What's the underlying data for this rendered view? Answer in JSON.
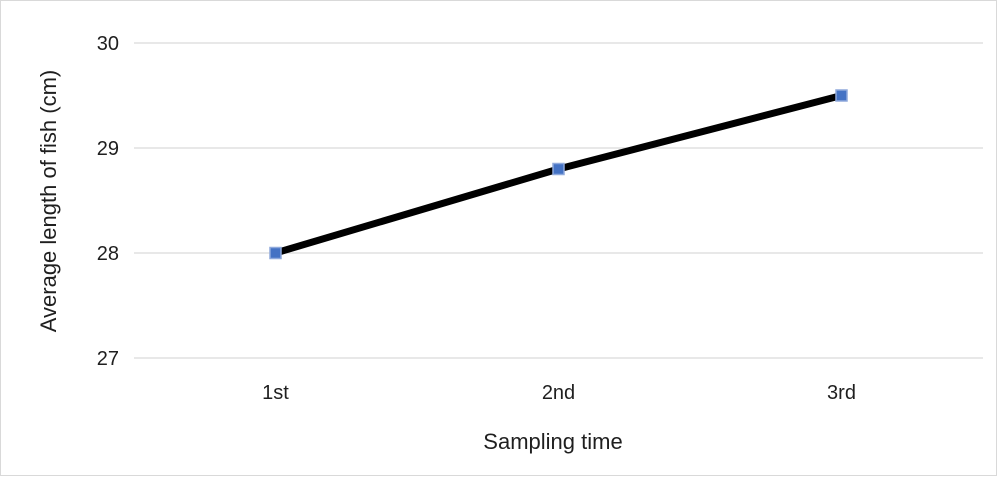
{
  "chart_data": {
    "type": "line",
    "title": "",
    "xlabel": "Sampling time",
    "ylabel": "Average length of fish (cm)",
    "categories": [
      "1st",
      "2nd",
      "3rd"
    ],
    "series": [
      {
        "values": [
          28.0,
          28.8,
          29.5
        ]
      }
    ],
    "ylim": [
      27,
      30
    ],
    "yticks": [
      "27",
      "28",
      "29",
      "30"
    ],
    "grid": true,
    "legend": "none",
    "colors": {
      "line": "#000000",
      "marker_fill": "#4472c4",
      "marker_stroke": "#8fa9dc",
      "grid": "#d9d9d9"
    }
  }
}
